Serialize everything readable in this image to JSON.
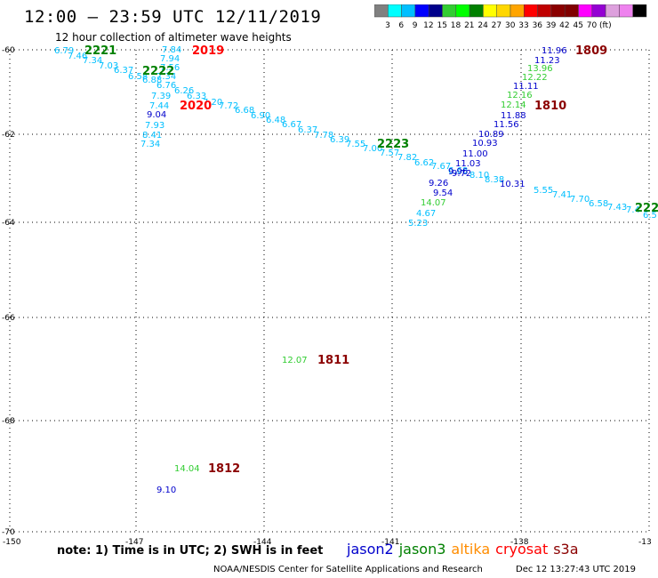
{
  "title": "12:00 – 23:59 UTC 12/11/2019",
  "subtitle": "12 hour collection of altimeter wave heights",
  "color_scale": {
    "colors": [
      "#808080",
      "#00ffff",
      "#00bfff",
      "#0000ff",
      "#00008b",
      "#32cd32",
      "#00ff00",
      "#008000",
      "#ffff00",
      "#ffd700",
      "#ffa500",
      "#ff0000",
      "#c00000",
      "#8b0000",
      "#800000",
      "#ff00ff",
      "#9400d3",
      "#dda0dd",
      "#ee82ee",
      "#000000"
    ],
    "labels": [
      "3",
      "6",
      "9",
      "12",
      "15",
      "18",
      "21",
      "24",
      "27",
      "30",
      "33",
      "36",
      "39",
      "42",
      "45",
      "70",
      "(ft)"
    ]
  },
  "axes": {
    "lat_ticks": [
      "-60",
      "-62",
      "-64",
      "-66",
      "-68",
      "-70"
    ],
    "lon_ticks": [
      "-150",
      "-147",
      "-144",
      "-141",
      "-138",
      "-13"
    ]
  },
  "note": "note: 1) Time is in UTC; 2) SWH is in feet",
  "satellites": [
    {
      "name": "jason2",
      "color": "#0000cc"
    },
    {
      "name": "jason3",
      "color": "#008000"
    },
    {
      "name": "altika",
      "color": "#ff8c00"
    },
    {
      "name": "cryosat",
      "color": "#ff0000"
    },
    {
      "name": "s3a",
      "color": "#8b0000"
    }
  ],
  "credit": "NOAA/NESDIS Center for Satellite Applications and Research",
  "timestamp": "Dec 12 13:27:43 UTC 2019",
  "pass_labels": [
    {
      "text": "2221",
      "color": "#008000"
    },
    {
      "text": "2019",
      "color": "#ff0000"
    },
    {
      "text": "2222",
      "color": "#008000"
    },
    {
      "text": "2020",
      "color": "#ff0000"
    },
    {
      "text": "2223",
      "color": "#008000"
    },
    {
      "text": "1809",
      "color": "#8b0000"
    },
    {
      "text": "1810",
      "color": "#8b0000"
    },
    {
      "text": "222",
      "color": "#008000"
    },
    {
      "text": "1811",
      "color": "#8b0000"
    },
    {
      "text": "1812",
      "color": "#8b0000"
    }
  ],
  "observations": [
    {
      "text": "6.79",
      "color": "#00bfff"
    },
    {
      "text": "7.46",
      "color": "#00bfff"
    },
    {
      "text": "7.34",
      "color": "#00bfff"
    },
    {
      "text": "7.03",
      "color": "#00bfff"
    },
    {
      "text": "6.37",
      "color": "#00bfff"
    },
    {
      "text": "6.58",
      "color": "#00bfff"
    },
    {
      "text": "6.88",
      "color": "#00bfff"
    },
    {
      "text": "7.84",
      "color": "#00bfff"
    },
    {
      "text": "7.94",
      "color": "#00bfff"
    },
    {
      "text": "7.56",
      "color": "#00bfff"
    },
    {
      "text": "7.34",
      "color": "#00bfff"
    },
    {
      "text": "6.76",
      "color": "#00bfff"
    },
    {
      "text": "6.26",
      "color": "#00bfff"
    },
    {
      "text": "7.39",
      "color": "#00bfff"
    },
    {
      "text": "6.33",
      "color": "#00bfff"
    },
    {
      "text": "7.44",
      "color": "#00bfff"
    },
    {
      "text": "7.20",
      "color": "#00bfff"
    },
    {
      "text": "7.72",
      "color": "#00bfff"
    },
    {
      "text": "9.04",
      "color": "#0000cc"
    },
    {
      "text": "6.68",
      "color": "#00bfff"
    },
    {
      "text": "6.90",
      "color": "#00bfff"
    },
    {
      "text": "7.93",
      "color": "#00bfff"
    },
    {
      "text": "6.48",
      "color": "#00bfff"
    },
    {
      "text": "6.67",
      "color": "#00bfff"
    },
    {
      "text": "8.41",
      "color": "#00bfff"
    },
    {
      "text": "6.37",
      "color": "#00bfff"
    },
    {
      "text": "7.34",
      "color": "#00bfff"
    },
    {
      "text": "7.78",
      "color": "#00bfff"
    },
    {
      "text": "6.39",
      "color": "#00bfff"
    },
    {
      "text": "7.55",
      "color": "#00bfff"
    },
    {
      "text": "7.00",
      "color": "#00bfff"
    },
    {
      "text": "7.57",
      "color": "#00bfff"
    },
    {
      "text": "7.82",
      "color": "#00bfff"
    },
    {
      "text": "6.62",
      "color": "#00bfff"
    },
    {
      "text": "7.67",
      "color": "#00bfff"
    },
    {
      "text": "6.68",
      "color": "#00bfff"
    },
    {
      "text": "9.72",
      "color": "#0000cc"
    },
    {
      "text": "8.10",
      "color": "#00bfff"
    },
    {
      "text": "9.26",
      "color": "#0000cc"
    },
    {
      "text": "8.38",
      "color": "#00bfff"
    },
    {
      "text": "10.31",
      "color": "#0000cc"
    },
    {
      "text": "9.54",
      "color": "#0000cc"
    },
    {
      "text": "14.07",
      "color": "#32cd32"
    },
    {
      "text": "4.67",
      "color": "#00bfff"
    },
    {
      "text": "5.23",
      "color": "#00bfff"
    },
    {
      "text": "11.96",
      "color": "#0000cc"
    },
    {
      "text": "11.23",
      "color": "#0000cc"
    },
    {
      "text": "13.96",
      "color": "#32cd32"
    },
    {
      "text": "12.22",
      "color": "#32cd32"
    },
    {
      "text": "11.11",
      "color": "#0000cc"
    },
    {
      "text": "12.16",
      "color": "#32cd32"
    },
    {
      "text": "12.14",
      "color": "#32cd32"
    },
    {
      "text": "11.88",
      "color": "#0000cc"
    },
    {
      "text": "11.56",
      "color": "#0000cc"
    },
    {
      "text": "10.89",
      "color": "#0000cc"
    },
    {
      "text": "10.93",
      "color": "#0000cc"
    },
    {
      "text": "11.00",
      "color": "#0000cc"
    },
    {
      "text": "11.03",
      "color": "#0000cc"
    },
    {
      "text": "9.96",
      "color": "#0000cc"
    },
    {
      "text": "5.55",
      "color": "#00bfff"
    },
    {
      "text": "7.41",
      "color": "#00bfff"
    },
    {
      "text": "7.70",
      "color": "#00bfff"
    },
    {
      "text": "6.58",
      "color": "#00bfff"
    },
    {
      "text": "7.43",
      "color": "#00bfff"
    },
    {
      "text": "7.4",
      "color": "#00bfff"
    },
    {
      "text": "6.5",
      "color": "#00bfff"
    },
    {
      "text": "12.07",
      "color": "#32cd32"
    },
    {
      "text": "14.04",
      "color": "#32cd32"
    },
    {
      "text": "9.10",
      "color": "#0000cc"
    }
  ]
}
